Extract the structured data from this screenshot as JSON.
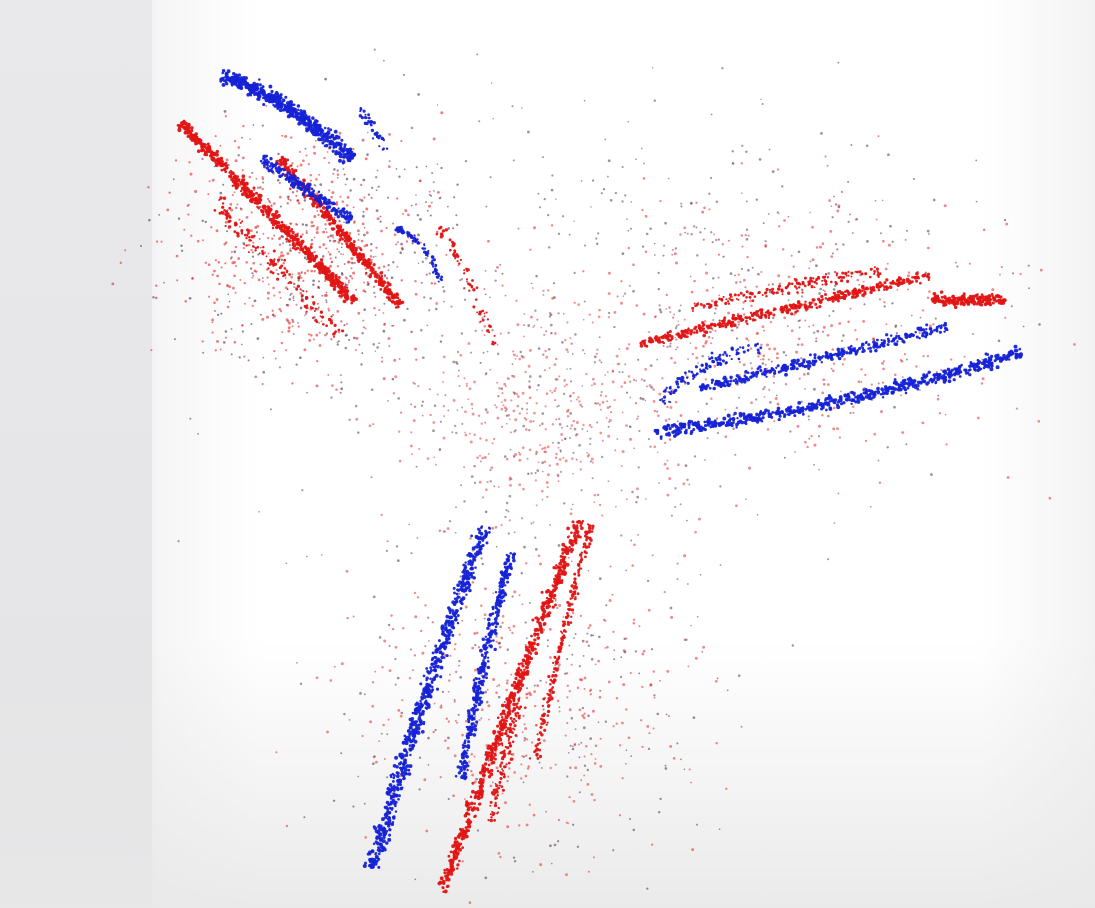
{
  "image": {
    "subject": "point-cloud",
    "colors": {
      "red": "#e11414",
      "blue": "#1522d6",
      "dark": "#3b1f3a",
      "background": "#ffffff"
    }
  }
}
